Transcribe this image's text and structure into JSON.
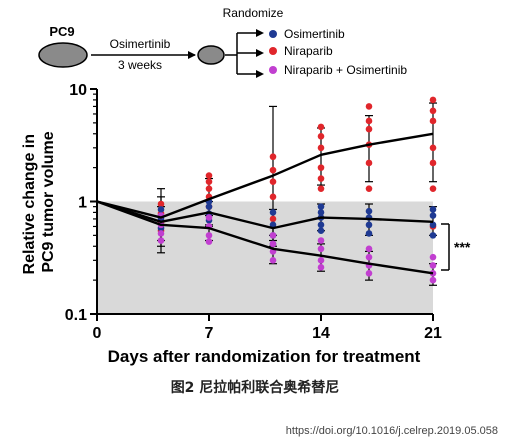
{
  "schema": {
    "cell_line": "PC9",
    "step1": "Osimertinib",
    "step2": "3 weeks",
    "randomize": "Randomize",
    "arms": [
      {
        "label": "Osimertinib",
        "color": "#1f3a93"
      },
      {
        "label": "Niraparib",
        "color": "#e0262b"
      },
      {
        "label": "Niraparib + Osimertinib",
        "color": "#c13fd0"
      }
    ]
  },
  "chart_data": {
    "type": "line",
    "title": "",
    "xlabel": "Days after randomization for treatment",
    "ylabel": "Relative change in PC9 tumor volume",
    "x_ticks": [
      0,
      7,
      14,
      21
    ],
    "y_ticks": [
      0.1,
      1,
      10
    ],
    "y_tick_labels": [
      "0.1",
      "1",
      "10"
    ],
    "x_range": [
      0,
      21
    ],
    "y_range": [
      0.1,
      10
    ],
    "y_scale": "log",
    "shaded_region": {
      "y_from": 0.1,
      "y_to": 1,
      "color": "#d9d9d9"
    },
    "significance": "***",
    "series": [
      {
        "name": "Niraparib",
        "color": "#e0262b",
        "x": [
          0,
          4,
          7,
          11,
          14,
          17,
          21
        ],
        "mean": [
          1.0,
          0.72,
          1.05,
          1.7,
          2.6,
          3.2,
          4.0
        ],
        "err_low": [
          1.0,
          0.45,
          0.6,
          0.45,
          1.4,
          1.5,
          1.5
        ],
        "err_high": [
          1.0,
          1.1,
          1.6,
          7.0,
          4.5,
          5.8,
          7.5
        ],
        "points": [
          [
            4,
            0.95
          ],
          [
            4,
            0.78
          ],
          [
            4,
            0.65
          ],
          [
            4,
            0.55
          ],
          [
            7,
            1.7
          ],
          [
            7,
            1.5
          ],
          [
            7,
            1.3
          ],
          [
            7,
            1.1
          ],
          [
            7,
            0.9
          ],
          [
            11,
            2.5
          ],
          [
            11,
            1.9
          ],
          [
            11,
            1.5
          ],
          [
            11,
            1.1
          ],
          [
            11,
            0.7
          ],
          [
            14,
            4.6
          ],
          [
            14,
            3.8
          ],
          [
            14,
            3.0
          ],
          [
            14,
            2.0
          ],
          [
            14,
            1.6
          ],
          [
            14,
            1.3
          ],
          [
            17,
            7.0
          ],
          [
            17,
            5.2
          ],
          [
            17,
            4.4
          ],
          [
            17,
            3.2
          ],
          [
            17,
            2.2
          ],
          [
            17,
            1.3
          ],
          [
            21,
            8.0
          ],
          [
            21,
            6.4
          ],
          [
            21,
            5.2
          ],
          [
            21,
            3.0
          ],
          [
            21,
            2.2
          ],
          [
            21,
            1.3
          ],
          [
            21,
            0.6
          ]
        ]
      },
      {
        "name": "Osimertinib",
        "color": "#1f3a93",
        "x": [
          0,
          4,
          7,
          11,
          14,
          17,
          21
        ],
        "mean": [
          1.0,
          0.66,
          0.8,
          0.58,
          0.72,
          0.7,
          0.66
        ],
        "err_low": [
          1.0,
          0.35,
          0.62,
          0.4,
          0.55,
          0.5,
          0.5
        ],
        "err_high": [
          1.0,
          1.3,
          1.0,
          0.85,
          0.95,
          0.95,
          0.9
        ],
        "points": [
          [
            4,
            0.85
          ],
          [
            4,
            0.7
          ],
          [
            4,
            0.58
          ],
          [
            7,
            1.0
          ],
          [
            7,
            0.9
          ],
          [
            7,
            0.78
          ],
          [
            7,
            0.68
          ],
          [
            11,
            0.8
          ],
          [
            11,
            0.62
          ],
          [
            11,
            0.5
          ],
          [
            11,
            0.42
          ],
          [
            14,
            0.9
          ],
          [
            14,
            0.8
          ],
          [
            14,
            0.72
          ],
          [
            14,
            0.62
          ],
          [
            14,
            0.55
          ],
          [
            17,
            0.82
          ],
          [
            17,
            0.72
          ],
          [
            17,
            0.62
          ],
          [
            17,
            0.52
          ],
          [
            21,
            0.85
          ],
          [
            21,
            0.75
          ],
          [
            21,
            0.62
          ],
          [
            21,
            0.5
          ]
        ]
      },
      {
        "name": "Niraparib + Osimertinib",
        "color": "#c13fd0",
        "x": [
          0,
          4,
          7,
          11,
          14,
          17,
          21
        ],
        "mean": [
          1.0,
          0.62,
          0.58,
          0.38,
          0.33,
          0.28,
          0.23
        ],
        "err_low": [
          1.0,
          0.4,
          0.45,
          0.28,
          0.24,
          0.2,
          0.18
        ],
        "err_high": [
          1.0,
          0.9,
          0.75,
          0.5,
          0.42,
          0.36,
          0.28
        ],
        "points": [
          [
            4,
            0.75
          ],
          [
            4,
            0.62
          ],
          [
            4,
            0.52
          ],
          [
            4,
            0.45
          ],
          [
            7,
            0.72
          ],
          [
            7,
            0.6
          ],
          [
            7,
            0.5
          ],
          [
            7,
            0.44
          ],
          [
            11,
            0.5
          ],
          [
            11,
            0.42
          ],
          [
            11,
            0.36
          ],
          [
            11,
            0.3
          ],
          [
            14,
            0.45
          ],
          [
            14,
            0.38
          ],
          [
            14,
            0.3
          ],
          [
            14,
            0.26
          ],
          [
            17,
            0.38
          ],
          [
            17,
            0.32
          ],
          [
            17,
            0.27
          ],
          [
            17,
            0.23
          ],
          [
            21,
            0.32
          ],
          [
            21,
            0.27
          ],
          [
            21,
            0.23
          ],
          [
            21,
            0.2
          ]
        ]
      }
    ]
  },
  "caption": "图2 尼拉帕利联合奥希替尼",
  "source_url": "https://doi.org/10.1016/j.celrep.2019.05.058"
}
